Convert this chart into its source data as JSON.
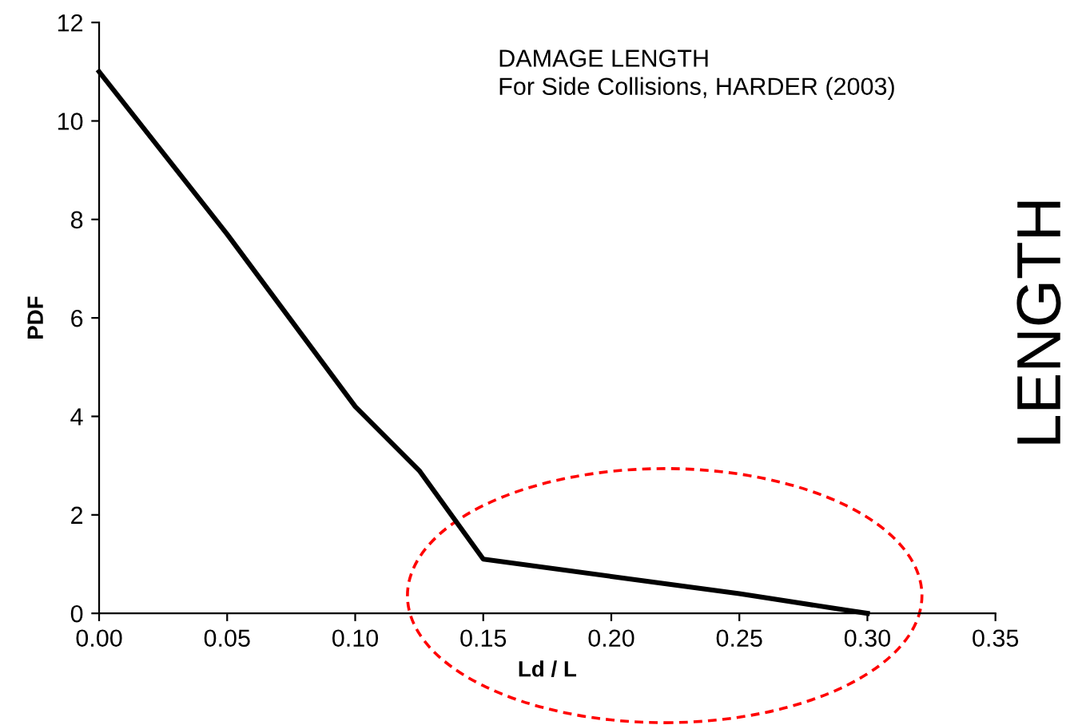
{
  "chart_data": {
    "type": "line",
    "xlabel": "Ld / L",
    "ylabel": "PDF",
    "x": [
      0.0,
      0.05,
      0.1,
      0.125,
      0.15,
      0.2,
      0.25,
      0.3
    ],
    "series": [
      {
        "color": "#000000",
        "values": [
          11.0,
          7.7,
          4.2,
          2.9,
          1.1,
          0.75,
          0.4,
          0.0
        ]
      }
    ],
    "xlim": [
      0.0,
      0.35
    ],
    "xticks": [
      {
        "value": 0,
        "label": "0.00"
      },
      {
        "value": 0.05,
        "label": "0.05"
      },
      {
        "value": 0.1,
        "label": "0.10"
      },
      {
        "value": 0.15,
        "label": "0.15"
      },
      {
        "value": 0.2,
        "label": "0.20"
      },
      {
        "value": 0.25,
        "label": "0.25"
      },
      {
        "value": 0.3,
        "label": "0.30"
      },
      {
        "value": 0.35,
        "label": "0.35"
      }
    ],
    "ylim": [
      0,
      12
    ],
    "yticks": [
      0,
      2,
      4,
      6,
      8,
      10,
      12
    ],
    "grid": false,
    "legend": false,
    "marker": "none",
    "line_style": "solid",
    "annotations": [
      "DAMAGE LENGTH\nFor Side Collisions, HARDER (2003)",
      "LENGTH"
    ]
  }
}
